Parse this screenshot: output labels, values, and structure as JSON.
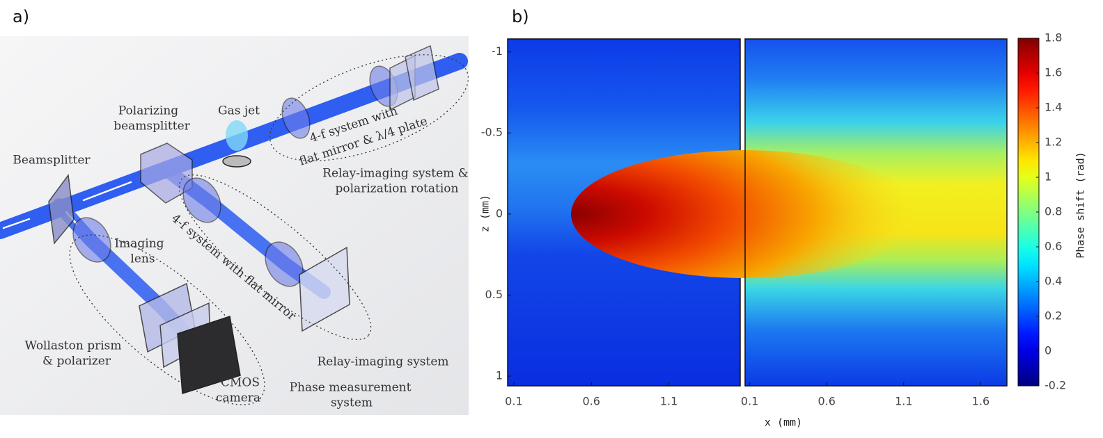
{
  "panel_a": {
    "label": "a)",
    "beamsplitter": "Beamsplitter",
    "pbs": [
      "Polarizing",
      "beamsplitter"
    ],
    "gas_jet": "Gas jet",
    "fourf_top": [
      "4-f system with",
      "flat mirror & λ/4 plate"
    ],
    "relay_top": [
      "Relay-imaging system &",
      "polarization rotation"
    ],
    "imaging_lens": [
      "Imaging",
      "lens"
    ],
    "fourf_bottom": "4-f system with flat mirror",
    "wollaston": [
      "Wollaston prism",
      "& polarizer"
    ],
    "cmos": [
      "CMOS",
      "camera"
    ],
    "phase_system": [
      "Phase measurement",
      "system"
    ],
    "relay_bottom": "Relay-imaging system"
  },
  "chart_data": {
    "type": "heatmap",
    "label": "b)",
    "xlabel": "x (mm)",
    "ylabel": "z (mm)",
    "ylim": [
      -1.08,
      1.06
    ],
    "yticks": [
      -1,
      -0.5,
      0,
      0.5,
      1
    ],
    "panels": [
      {
        "xlim": [
          0.06,
          1.56
        ],
        "xticks": [
          0.1,
          0.6,
          1.1
        ]
      },
      {
        "xlim": [
          0.07,
          1.77
        ],
        "xticks": [
          0.1,
          0.6,
          1.1,
          1.6
        ]
      }
    ],
    "colorbar": {
      "label": "Phase shift (rad)",
      "colormap": "jet",
      "clim": [
        -0.2,
        1.8
      ],
      "ticks": [
        1.8,
        1.6,
        1.4,
        1.2,
        1,
        0.8,
        0.6,
        0.4,
        0.2,
        0,
        -0.2
      ]
    }
  }
}
